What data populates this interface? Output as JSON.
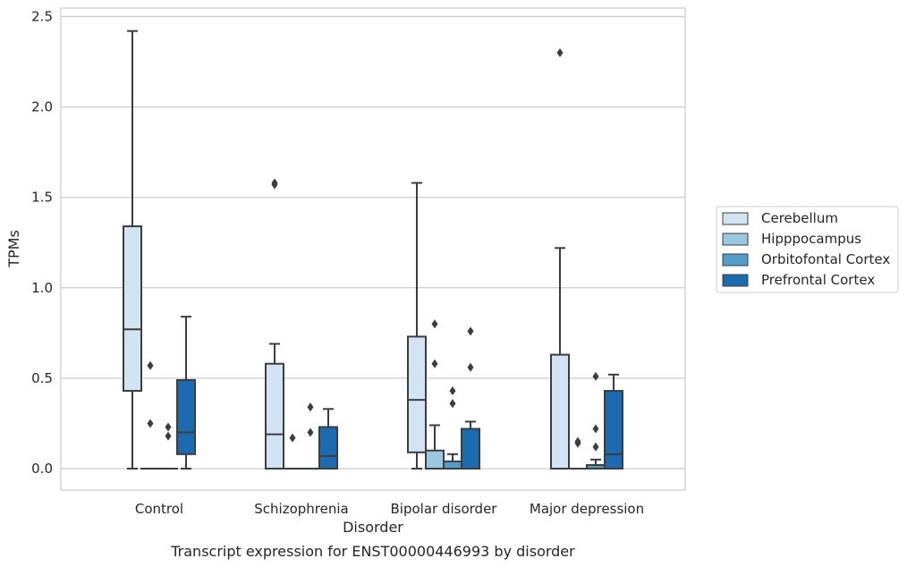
{
  "chart_data": {
    "type": "box",
    "title": "",
    "caption": "Transcript expression for ENST00000446993 by disorder",
    "xlabel": "Disorder",
    "ylabel": "TPMs",
    "ylim": [
      -0.12,
      2.55
    ],
    "yticks": [
      "0.0",
      "0.5",
      "1.0",
      "1.5",
      "2.0",
      "2.5"
    ],
    "grid": "horizontal",
    "legend_position": "right",
    "categories": [
      "Control",
      "Schizophrenia",
      "Bipolar disorder",
      "Major depression"
    ],
    "series": [
      {
        "name": "Cerebellum",
        "color": "#d2e3f3",
        "boxes": [
          {
            "q1": 0.43,
            "median": 0.77,
            "q3": 1.34,
            "whisker_low": 0.0,
            "whisker_high": 2.42,
            "outliers": []
          },
          {
            "q1": 0.0,
            "median": 0.19,
            "q3": 0.58,
            "whisker_low": 0.0,
            "whisker_high": 0.69,
            "outliers": [
              1.57,
              1.58
            ]
          },
          {
            "q1": 0.09,
            "median": 0.38,
            "q3": 0.73,
            "whisker_low": 0.0,
            "whisker_high": 1.58,
            "outliers": []
          },
          {
            "q1": 0.0,
            "median": 0.0,
            "q3": 0.63,
            "whisker_low": 0.0,
            "whisker_high": 1.22,
            "outliers": [
              2.3
            ]
          }
        ]
      },
      {
        "name": "Hipppocampus",
        "color": "#9ac8e0",
        "boxes": [
          {
            "q1": 0.0,
            "median": 0.0,
            "q3": 0.0,
            "whisker_low": 0.0,
            "whisker_high": 0.0,
            "outliers": [
              0.57,
              0.25
            ]
          },
          {
            "q1": 0.0,
            "median": 0.0,
            "q3": 0.0,
            "whisker_low": 0.0,
            "whisker_high": 0.0,
            "outliers": [
              0.17
            ]
          },
          {
            "q1": 0.0,
            "median": 0.0,
            "q3": 0.1,
            "whisker_low": 0.0,
            "whisker_high": 0.24,
            "outliers": [
              0.8,
              0.58
            ]
          },
          {
            "q1": 0.0,
            "median": 0.0,
            "q3": 0.0,
            "whisker_low": 0.0,
            "whisker_high": 0.0,
            "outliers": [
              0.15,
              0.14
            ]
          }
        ]
      },
      {
        "name": "Orbitofontal Cortex",
        "color": "#529dcc",
        "boxes": [
          {
            "q1": 0.0,
            "median": 0.0,
            "q3": 0.0,
            "whisker_low": 0.0,
            "whisker_high": 0.0,
            "outliers": [
              0.23,
              0.18
            ]
          },
          {
            "q1": 0.0,
            "median": 0.0,
            "q3": 0.0,
            "whisker_low": 0.0,
            "whisker_high": 0.0,
            "outliers": [
              0.34,
              0.2
            ]
          },
          {
            "q1": 0.0,
            "median": 0.0,
            "q3": 0.04,
            "whisker_low": 0.0,
            "whisker_high": 0.08,
            "outliers": [
              0.43,
              0.36
            ]
          },
          {
            "q1": 0.0,
            "median": 0.0,
            "q3": 0.02,
            "whisker_low": 0.0,
            "whisker_high": 0.05,
            "outliers": [
              0.51,
              0.22,
              0.12
            ]
          }
        ]
      },
      {
        "name": "Prefrontal Cortex",
        "color": "#1c6aaf",
        "boxes": [
          {
            "q1": 0.08,
            "median": 0.2,
            "q3": 0.49,
            "whisker_low": 0.0,
            "whisker_high": 0.84,
            "outliers": []
          },
          {
            "q1": 0.0,
            "median": 0.07,
            "q3": 0.23,
            "whisker_low": 0.0,
            "whisker_high": 0.33,
            "outliers": []
          },
          {
            "q1": 0.0,
            "median": 0.0,
            "q3": 0.22,
            "whisker_low": 0.0,
            "whisker_high": 0.26,
            "outliers": [
              0.76,
              0.56
            ]
          },
          {
            "q1": 0.0,
            "median": 0.08,
            "q3": 0.43,
            "whisker_low": 0.0,
            "whisker_high": 0.52,
            "outliers": []
          }
        ]
      }
    ]
  }
}
